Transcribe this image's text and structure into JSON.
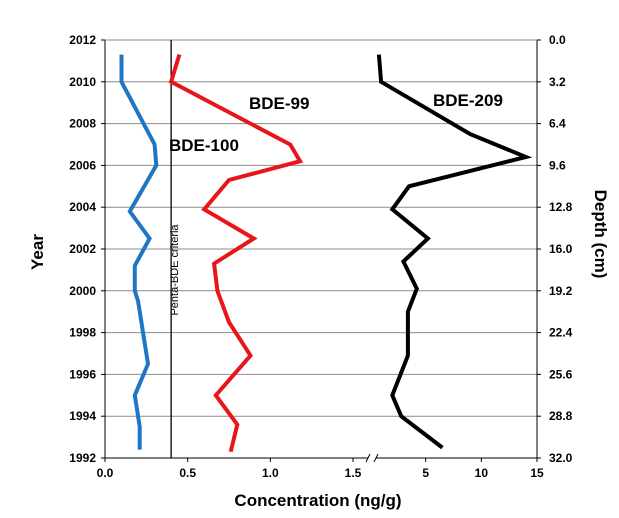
{
  "chart_data": {
    "type": "line",
    "left_axis": {
      "label": "Year",
      "min": 1992,
      "max": 2012,
      "ticks": [
        "2012",
        "2010",
        "2008",
        "2006",
        "2004",
        "2002",
        "2000",
        "1998",
        "1996",
        "1994",
        "1992"
      ]
    },
    "right_axis": {
      "label": "Depth (cm)",
      "min": 0.0,
      "max": 32.0,
      "ticks": [
        "0.0",
        "3.2",
        "6.4",
        "9.6",
        "12.8",
        "16.0",
        "19.2",
        "22.4",
        "25.6",
        "28.8",
        "32.0"
      ]
    },
    "x_axis": {
      "label": "Concentration (ng/g)",
      "broken": true,
      "segment_1": {
        "min": 0.0,
        "max": 1.5,
        "ticks": [
          "0.0",
          "0.5",
          "1.0",
          "1.5"
        ]
      },
      "segment_2": {
        "min": 0,
        "max": 15,
        "ticks": [
          "5",
          "10",
          "15"
        ]
      }
    },
    "criteria_line": {
      "label": "Penta-BDE criteria",
      "x": 0.4,
      "segment": 1,
      "color": "#000000"
    },
    "series": [
      {
        "name": "BDE-100",
        "color": "#1f77c4",
        "segment": 1,
        "points": [
          {
            "x": 0.1,
            "y": 2011.3
          },
          {
            "x": 0.1,
            "y": 2010.0
          },
          {
            "x": 0.3,
            "y": 2007.0
          },
          {
            "x": 0.31,
            "y": 2006.0
          },
          {
            "x": 0.15,
            "y": 2003.8
          },
          {
            "x": 0.27,
            "y": 2002.5
          },
          {
            "x": 0.18,
            "y": 2001.2
          },
          {
            "x": 0.18,
            "y": 2000.0
          },
          {
            "x": 0.2,
            "y": 1999.5
          },
          {
            "x": 0.26,
            "y": 1996.5
          },
          {
            "x": 0.18,
            "y": 1995.0
          },
          {
            "x": 0.21,
            "y": 1993.5
          },
          {
            "x": 0.21,
            "y": 1992.4
          }
        ]
      },
      {
        "name": "BDE-99",
        "color": "#e8161b",
        "segment": 1,
        "points": [
          {
            "x": 0.45,
            "y": 2011.3
          },
          {
            "x": 0.4,
            "y": 2010.0
          },
          {
            "x": 1.12,
            "y": 2007.0
          },
          {
            "x": 1.18,
            "y": 2006.2
          },
          {
            "x": 0.75,
            "y": 2005.3
          },
          {
            "x": 0.6,
            "y": 2003.9
          },
          {
            "x": 0.9,
            "y": 2002.5
          },
          {
            "x": 0.66,
            "y": 2001.3
          },
          {
            "x": 0.68,
            "y": 2000.0
          },
          {
            "x": 0.75,
            "y": 1998.5
          },
          {
            "x": 0.88,
            "y": 1996.9
          },
          {
            "x": 0.67,
            "y": 1995.0
          },
          {
            "x": 0.8,
            "y": 1993.6
          },
          {
            "x": 0.76,
            "y": 1992.3
          }
        ]
      },
      {
        "name": "BDE-209",
        "color": "#000000",
        "segment": 2,
        "points": [
          {
            "x": 0.8,
            "y": 2011.3
          },
          {
            "x": 1.0,
            "y": 2010.0
          },
          {
            "x": 9.0,
            "y": 2007.5
          },
          {
            "x": 14.0,
            "y": 2006.4
          },
          {
            "x": 3.5,
            "y": 2005.0
          },
          {
            "x": 2.0,
            "y": 2003.9
          },
          {
            "x": 5.2,
            "y": 2002.5
          },
          {
            "x": 3.0,
            "y": 2001.4
          },
          {
            "x": 4.2,
            "y": 2000.1
          },
          {
            "x": 3.4,
            "y": 1999.0
          },
          {
            "x": 3.4,
            "y": 1998.0
          },
          {
            "x": 3.4,
            "y": 1996.9
          },
          {
            "x": 2.0,
            "y": 1995.0
          },
          {
            "x": 2.8,
            "y": 1994.0
          },
          {
            "x": 6.5,
            "y": 1992.5
          }
        ]
      }
    ]
  }
}
